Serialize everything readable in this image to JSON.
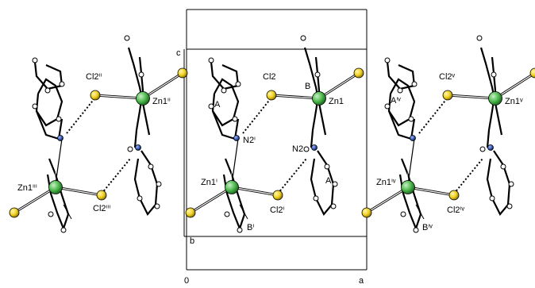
{
  "figure": {
    "cell_axes": {
      "c": "c",
      "b": "b",
      "origin": "0",
      "a": "a"
    },
    "ring_labels": {
      "A": "A",
      "B": "B"
    },
    "molecules": [
      {
        "id": "left",
        "zn_top": "Zn1ⁱⁱ",
        "zn_bottom": "Zn1ⁱⁱⁱ",
        "cl_top": "Cl2ⁱⁱ",
        "cl_bottom": "Cl2ⁱⁱⁱ",
        "ring_a": "",
        "ring_b": "",
        "n2": ""
      },
      {
        "id": "center",
        "zn_top": "Zn1",
        "zn_bottom": "Zn1ⁱ",
        "cl_top": "Cl2",
        "cl_bottom": "Cl2ⁱ",
        "ring_a_top": "A",
        "ring_a_bottom": "A",
        "ring_b_top": "B",
        "ring_b_bottom": "Bⁱ",
        "n2_left": "N2ⁱ",
        "n2_right": "N2"
      },
      {
        "id": "right",
        "zn_top": "Zn1ᵛ",
        "zn_bottom": "Zn1ⁱᵛ",
        "cl_top": "Cl2ᵛ",
        "cl_bottom": "Cl2ⁱᵛ",
        "ring_a_top": "Aⁱᵛ",
        "ring_b_bottom": "Bⁱᵛ"
      }
    ],
    "atom_colors": {
      "zn": "#4cb84c",
      "cl": "#f0d020",
      "n": "#2a4fa8",
      "c": "#000000",
      "h": "#ffffff"
    }
  }
}
